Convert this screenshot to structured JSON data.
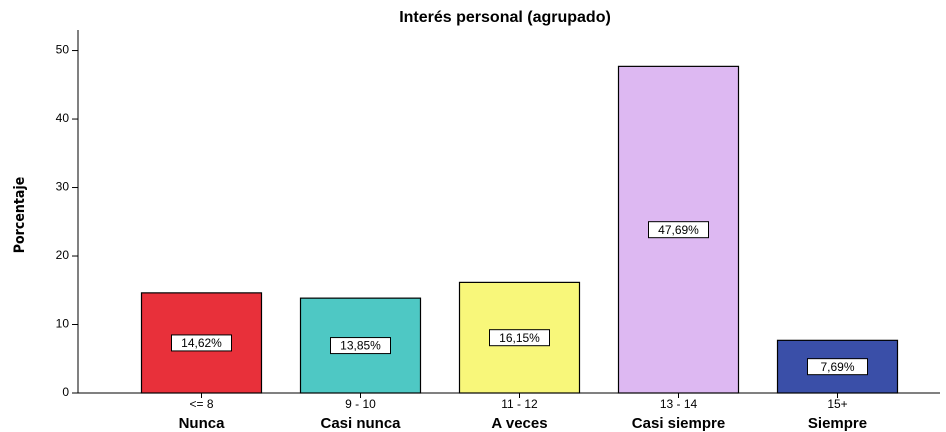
{
  "chart_data": {
    "type": "bar",
    "title": "Interés personal (agrupado)",
    "y_label": "Porcentaje",
    "categories": [
      "<= 8",
      "9 - 10",
      "11 - 12",
      "13 - 14",
      "15+"
    ],
    "category_names": [
      "Nunca",
      "Casi nunca",
      "A veces",
      "Casi siempre",
      "Siempre"
    ],
    "values": [
      14.62,
      13.85,
      16.15,
      47.69,
      7.69
    ],
    "value_labels": [
      "14,62%",
      "13,85%",
      "16,15%",
      "47,69%",
      "7,69%"
    ],
    "colors": [
      "#e8303a",
      "#4ec8c4",
      "#f8f77a",
      "#ddb8f2",
      "#3a4fa8"
    ],
    "ylim": [
      0,
      53
    ],
    "yticks": [
      0,
      10,
      20,
      30,
      40,
      50
    ],
    "grid": false
  }
}
